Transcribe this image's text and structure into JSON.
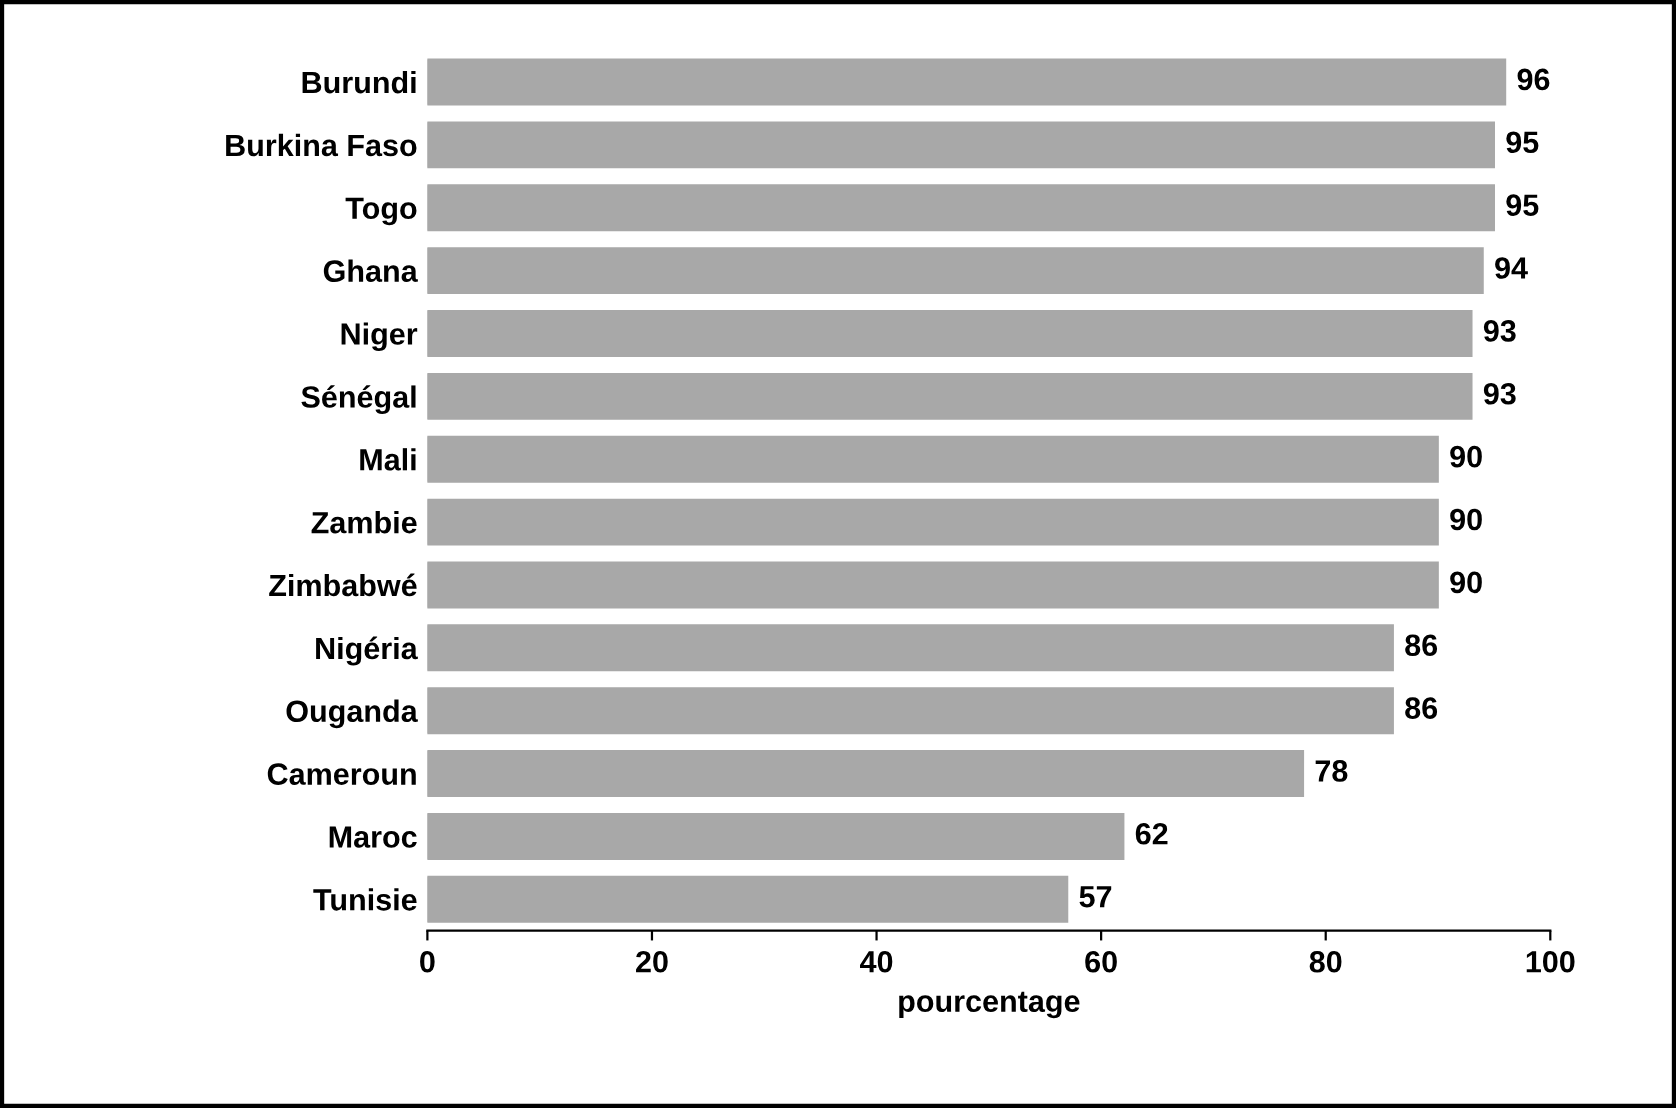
{
  "chart_data": {
    "type": "bar",
    "orientation": "horizontal",
    "xlabel": "pourcentage",
    "categories": [
      "Burundi",
      "Burkina Faso",
      "Togo",
      "Ghana",
      "Niger",
      "Sénégal",
      "Mali",
      "Zambie",
      "Zimbabwé",
      "Nigéria",
      "Ouganda",
      "Cameroun",
      "Maroc",
      "Tunisie"
    ],
    "values": [
      96,
      95,
      95,
      94,
      93,
      93,
      90,
      90,
      90,
      86,
      86,
      78,
      62,
      57
    ],
    "color": "#a8a8a8",
    "xlim": [
      0,
      100
    ],
    "xticks": [
      0,
      20,
      40,
      60,
      80,
      100
    ],
    "data_labels": true,
    "grid": false
  }
}
